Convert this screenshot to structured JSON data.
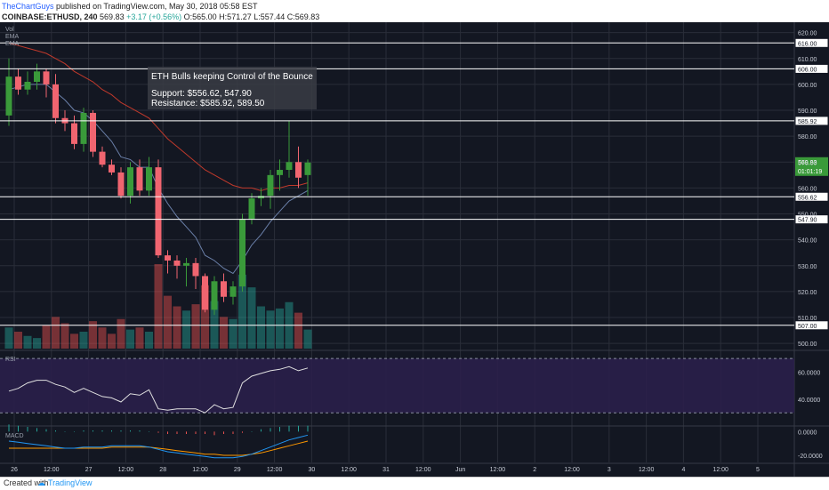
{
  "header": {
    "publisher": "TheChartGuys",
    "published_text": "published on TradingView.com, May 30, 2018 05:58 EST",
    "symbol": "COINBASE:ETHUSD, 240",
    "price": "569.83",
    "change": "+3.17 (+0.56%)",
    "ohlc": "O:565.00 H:571.27 L:557.44 C:569.83"
  },
  "footer": {
    "created_with": "Created with",
    "brand": "TradingView"
  },
  "panes": {
    "main_labels": [
      "Vol",
      "EMA",
      "EMA"
    ],
    "rsi_label": "RSI",
    "macd_label": "MACD"
  },
  "annotation": {
    "title": "ETH Bulls keeping Control of the Bounce",
    "support": "Support: $556.62, 547.90",
    "resistance": "Resistance: $585.92, 589.50"
  },
  "colors": {
    "background": "#131722",
    "grid": "#2a2e39",
    "up": "#26a69a",
    "up_body": "#3a9a3a",
    "down": "#ef5350",
    "down_body": "#f06570",
    "ema_fast": "#6a7fa8",
    "ema_slow": "#c0392b",
    "rsi_bg": "#2a1f4a",
    "rsi_line": "#e0e0e0",
    "macd_line": "#2196f3",
    "signal_line": "#ff9800",
    "level": "#ffffff"
  },
  "chart_data": {
    "type": "candlestick",
    "symbol": "COINBASE:ETHUSD",
    "timeframe": "240",
    "x_tick_labels": [
      "26",
      "12:00",
      "27",
      "12:00",
      "28",
      "12:00",
      "29",
      "12:00",
      "30",
      "12:00",
      "31",
      "12:00",
      "Jun",
      "12:00",
      "2",
      "12:00",
      "3",
      "12:00",
      "4",
      "12:00",
      "5"
    ],
    "price_axis": {
      "ylim": [
        498,
        624
      ],
      "ticks": [
        500,
        510,
        520,
        530,
        540,
        550,
        560,
        570,
        580,
        590,
        600,
        610,
        620
      ]
    },
    "candles": [
      {
        "o": 588,
        "h": 610,
        "l": 584,
        "c": 603
      },
      {
        "o": 603,
        "h": 606,
        "l": 596,
        "c": 598
      },
      {
        "o": 598,
        "h": 605,
        "l": 596,
        "c": 601
      },
      {
        "o": 601,
        "h": 608,
        "l": 598,
        "c": 605
      },
      {
        "o": 605,
        "h": 606,
        "l": 595,
        "c": 600
      },
      {
        "o": 600,
        "h": 604,
        "l": 585,
        "c": 587
      },
      {
        "o": 587,
        "h": 590,
        "l": 582,
        "c": 585
      },
      {
        "o": 585,
        "h": 588,
        "l": 575,
        "c": 577
      },
      {
        "o": 577,
        "h": 591,
        "l": 574,
        "c": 589
      },
      {
        "o": 589,
        "h": 590,
        "l": 572,
        "c": 574
      },
      {
        "o": 574,
        "h": 576,
        "l": 568,
        "c": 569
      },
      {
        "o": 569,
        "h": 571,
        "l": 565,
        "c": 566
      },
      {
        "o": 566,
        "h": 568,
        "l": 556,
        "c": 557
      },
      {
        "o": 557,
        "h": 570,
        "l": 554,
        "c": 568
      },
      {
        "o": 568,
        "h": 571,
        "l": 557,
        "c": 559
      },
      {
        "o": 559,
        "h": 572,
        "l": 557,
        "c": 568
      },
      {
        "o": 568,
        "h": 571,
        "l": 533,
        "c": 534
      },
      {
        "o": 534,
        "h": 536,
        "l": 527,
        "c": 532
      },
      {
        "o": 532,
        "h": 534,
        "l": 525,
        "c": 530
      },
      {
        "o": 530,
        "h": 533,
        "l": 522,
        "c": 531
      },
      {
        "o": 531,
        "h": 533,
        "l": 521,
        "c": 526
      },
      {
        "o": 526,
        "h": 527,
        "l": 512,
        "c": 513
      },
      {
        "o": 513,
        "h": 526,
        "l": 511,
        "c": 524
      },
      {
        "o": 524,
        "h": 527,
        "l": 516,
        "c": 518
      },
      {
        "o": 518,
        "h": 524,
        "l": 515,
        "c": 522
      },
      {
        "o": 522,
        "h": 550,
        "l": 520,
        "c": 548
      },
      {
        "o": 548,
        "h": 558,
        "l": 546,
        "c": 556
      },
      {
        "o": 556,
        "h": 560,
        "l": 553,
        "c": 557
      },
      {
        "o": 557,
        "h": 567,
        "l": 552,
        "c": 565
      },
      {
        "o": 565,
        "h": 571,
        "l": 559,
        "c": 567
      },
      {
        "o": 567,
        "h": 586,
        "l": 564,
        "c": 570
      },
      {
        "o": 570,
        "h": 576,
        "l": 560,
        "c": 564
      },
      {
        "o": 565,
        "h": 571,
        "l": 557,
        "c": 569.83
      }
    ],
    "volume": [
      20,
      16,
      12,
      10,
      22,
      30,
      24,
      14,
      16,
      26,
      20,
      14,
      28,
      18,
      20,
      16,
      80,
      50,
      40,
      36,
      42,
      60,
      45,
      30,
      28,
      70,
      58,
      40,
      36,
      38,
      44,
      34,
      18
    ],
    "ema_fast": [
      598,
      599,
      600,
      600,
      600,
      597,
      594,
      590,
      589,
      586,
      582,
      578,
      572,
      571,
      568,
      568,
      560,
      554,
      549,
      545,
      541,
      534,
      532,
      529,
      527,
      532,
      538,
      542,
      547,
      551,
      555,
      557,
      559
    ],
    "ema_slow": [
      616,
      615,
      614,
      613,
      612,
      610,
      608,
      605,
      603,
      601,
      598,
      596,
      593,
      591,
      589,
      587,
      583,
      579,
      576,
      573,
      570,
      567,
      565,
      563,
      561,
      560,
      560,
      559,
      560,
      560,
      561,
      561,
      562
    ],
    "levels": [
      616.0,
      606.0,
      585.92,
      556.62,
      547.9,
      507.0
    ],
    "last_price": 569.83,
    "countdown": "01:01:19",
    "rsi": {
      "values": [
        46,
        48,
        52,
        54,
        54,
        51,
        49,
        45,
        48,
        45,
        42,
        41,
        38,
        44,
        43,
        47,
        33,
        32,
        33,
        33,
        33,
        30,
        36,
        33,
        34,
        52,
        57,
        59,
        61,
        62,
        64,
        61,
        63
      ],
      "ticks": [
        40,
        60
      ],
      "ylim": [
        21,
        74
      ],
      "bands": [
        30,
        70
      ]
    },
    "macd": {
      "macd": [
        -8,
        -9,
        -10,
        -11,
        -12,
        -13,
        -14,
        -14,
        -13,
        -13,
        -13,
        -12,
        -12,
        -12,
        -12,
        -13,
        -15,
        -17,
        -18,
        -19,
        -20,
        -21,
        -22,
        -22,
        -22,
        -21,
        -19,
        -16,
        -13,
        -10,
        -7,
        -5,
        -3
      ],
      "signal": [
        -14,
        -14,
        -14,
        -14,
        -14,
        -14,
        -14,
        -14,
        -14,
        -14,
        -14,
        -13,
        -13,
        -13,
        -13,
        -13,
        -14,
        -15,
        -16,
        -17,
        -18,
        -19,
        -19,
        -20,
        -20,
        -20,
        -19,
        -18,
        -16,
        -14,
        -12,
        -10,
        -8
      ],
      "ticks": [
        0,
        -20
      ],
      "ylim": [
        -26,
        4
      ]
    }
  }
}
